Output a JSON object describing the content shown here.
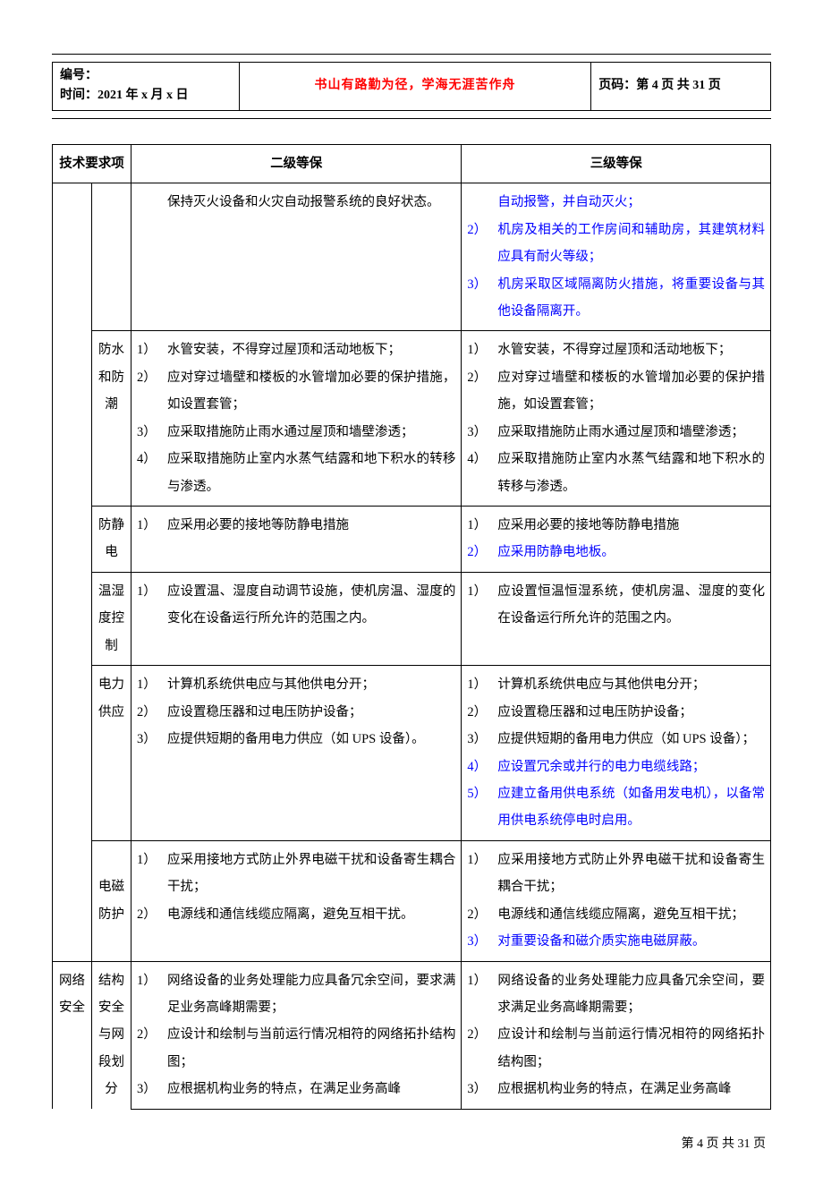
{
  "header": {
    "serial_label": "编号：",
    "date_label": "时间：2021 年 x 月 x 日",
    "motto": "书山有路勤为径，学海无涯苦作舟",
    "page_info": "页码：第 4 页  共 31 页"
  },
  "table_headers": {
    "req": "技术要求项",
    "level2": "二级等保",
    "level3": "三级等保"
  },
  "rows": [
    {
      "cat": "",
      "sub": "",
      "l2": [
        {
          "num": "",
          "text": "保持灭火设备和火灾自动报警系统的良好状态。",
          "extra": false
        }
      ],
      "l3": [
        {
          "num": "",
          "text": "自动报警，并自动灭火；",
          "extra": true
        },
        {
          "num": "2）",
          "text": "机房及相关的工作房间和辅助房，其建筑材料应具有耐火等级；",
          "extra": true
        },
        {
          "num": "3）",
          "text": "机房采取区域隔离防火措施，将重要设备与其他设备隔离开。",
          "extra": true
        }
      ]
    },
    {
      "cat": "",
      "sub": "防水和防潮",
      "l2": [
        {
          "num": "1）",
          "text": "水管安装，不得穿过屋顶和活动地板下；",
          "extra": false
        },
        {
          "num": "2）",
          "text": "应对穿过墙壁和楼板的水管增加必要的保护措施，如设置套管；",
          "extra": false
        },
        {
          "num": "3）",
          "text": "应采取措施防止雨水通过屋顶和墙壁渗透；",
          "extra": false
        },
        {
          "num": "4）",
          "text": "应采取措施防止室内水蒸气结露和地下积水的转移与渗透。",
          "extra": false
        }
      ],
      "l3": [
        {
          "num": "1）",
          "text": "水管安装，不得穿过屋顶和活动地板下；",
          "extra": false
        },
        {
          "num": "2）",
          "text": "应对穿过墙壁和楼板的水管增加必要的保护措施，如设置套管；",
          "extra": false
        },
        {
          "num": "3）",
          "text": "应采取措施防止雨水通过屋顶和墙壁渗透；",
          "extra": false
        },
        {
          "num": "4）",
          "text": "应采取措施防止室内水蒸气结露和地下积水的转移与渗透。",
          "extra": false
        }
      ]
    },
    {
      "cat": "",
      "sub": "防静电",
      "l2": [
        {
          "num": "1）",
          "text": "应采用必要的接地等防静电措施",
          "extra": false
        }
      ],
      "l3": [
        {
          "num": "1）",
          "text": "应采用必要的接地等防静电措施",
          "extra": false
        },
        {
          "num": "2）",
          "text": "应采用防静电地板。",
          "extra": true
        }
      ]
    },
    {
      "cat": "",
      "sub": "温湿度控制",
      "l2": [
        {
          "num": "1）",
          "text": "应设置温、湿度自动调节设施，使机房温、湿度的变化在设备运行所允许的范围之内。",
          "extra": false
        }
      ],
      "l3": [
        {
          "num": "1）",
          "text": "应设置恒温恒湿系统，使机房温、湿度的变化在设备运行所允许的范围之内。",
          "extra": false
        }
      ]
    },
    {
      "cat": "",
      "sub": "电力供应",
      "l2": [
        {
          "num": "1）",
          "text": "计算机系统供电应与其他供电分开；",
          "extra": false
        },
        {
          "num": "2）",
          "text": "应设置稳压器和过电压防护设备；",
          "extra": false
        },
        {
          "num": "3）",
          "text": "应提供短期的备用电力供应（如 UPS 设备）。",
          "extra": false
        }
      ],
      "l3": [
        {
          "num": "1）",
          "text": "计算机系统供电应与其他供电分开；",
          "extra": false
        },
        {
          "num": "2）",
          "text": "应设置稳压器和过电压防护设备；",
          "extra": false
        },
        {
          "num": "3）",
          "text": "应提供短期的备用电力供应（如 UPS 设备）；",
          "extra": false
        },
        {
          "num": "4）",
          "text": "应设置冗余或并行的电力电缆线路；",
          "extra": true
        },
        {
          "num": "5）",
          "text": "应建立备用供电系统（如备用发电机），以备常用供电系统停电时启用。",
          "extra": true
        }
      ]
    },
    {
      "cat": "",
      "sub": "电磁防护",
      "sub_center": true,
      "l2": [
        {
          "num": "1）",
          "text": "应采用接地方式防止外界电磁干扰和设备寄生耦合干扰；",
          "extra": false
        },
        {
          "num": "2）",
          "text": "电源线和通信线缆应隔离，避免互相干扰。",
          "extra": false
        }
      ],
      "l3": [
        {
          "num": "1）",
          "text": "应采用接地方式防止外界电磁干扰和设备寄生耦合干扰；",
          "extra": false
        },
        {
          "num": "2）",
          "text": "电源线和通信线缆应隔离，避免互相干扰；",
          "extra": false
        },
        {
          "num": "3）",
          "text": "对重要设备和磁介质实施电磁屏蔽。",
          "extra": true
        }
      ]
    },
    {
      "cat": "网络安全",
      "sub": "结构安全与网段划分",
      "l2": [
        {
          "num": "1）",
          "text": "网络设备的业务处理能力应具备冗余空间，要求满足业务高峰期需要；",
          "extra": false
        },
        {
          "num": "2）",
          "text": "应设计和绘制与当前运行情况相符的网络拓扑结构图；",
          "extra": false
        },
        {
          "num": "3）",
          "text": "应根据机构业务的特点，在满足业务高峰",
          "extra": false
        }
      ],
      "l3": [
        {
          "num": "1）",
          "text": "网络设备的业务处理能力应具备冗余空间，要求满足业务高峰期需要；",
          "extra": false
        },
        {
          "num": "2）",
          "text": "应设计和绘制与当前运行情况相符的网络拓扑结构图；",
          "extra": false
        },
        {
          "num": "3）",
          "text": "应根据机构业务的特点，在满足业务高峰",
          "extra": false
        }
      ]
    }
  ],
  "footer": "第 4 页  共 31 页",
  "colors": {
    "text": "#000000",
    "highlight": "#0000ff",
    "motto": "#ff0000",
    "border": "#000000",
    "background": "#ffffff"
  }
}
